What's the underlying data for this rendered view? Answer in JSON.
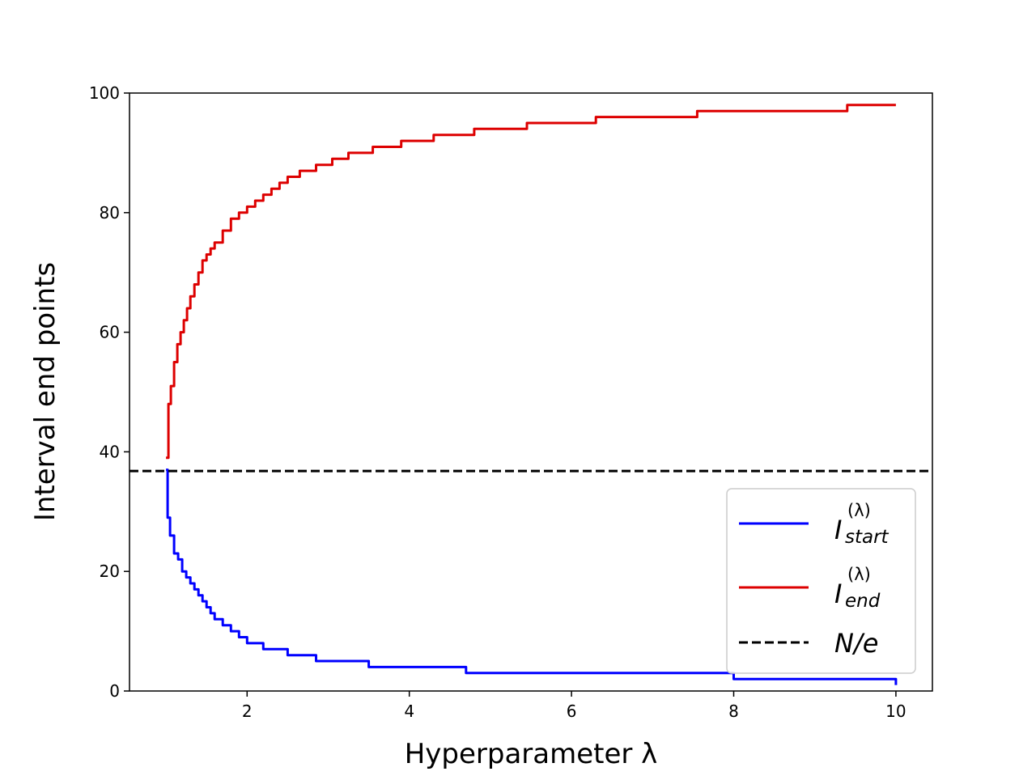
{
  "chart_data": {
    "type": "line",
    "title": "",
    "xlabel": "Hyperparameter λ",
    "ylabel": "Interval end points",
    "xlim": [
      0.55,
      10.45
    ],
    "ylim": [
      0,
      100
    ],
    "xticks": [
      2,
      4,
      6,
      8,
      10
    ],
    "yticks": [
      0,
      20,
      40,
      60,
      80,
      100
    ],
    "grid": false,
    "legend_position": "lower-right",
    "series": [
      {
        "name": "I_start^(λ)",
        "legend_symbol": "I",
        "legend_subscript": "start",
        "legend_superscript": "(λ)",
        "color": "#0000ff",
        "line_style": "solid",
        "x": [
          1.0,
          1.02,
          1.05,
          1.1,
          1.15,
          1.2,
          1.25,
          1.3,
          1.35,
          1.4,
          1.45,
          1.5,
          1.55,
          1.6,
          1.7,
          1.8,
          1.9,
          2.0,
          2.2,
          2.5,
          2.85,
          3.5,
          4.7,
          8.0,
          10.0
        ],
        "y": [
          37,
          29,
          26,
          23,
          22,
          20,
          19,
          18,
          17,
          16,
          15,
          14,
          13,
          12,
          11,
          10,
          9,
          8,
          7,
          6,
          5,
          4,
          3,
          2,
          1
        ]
      },
      {
        "name": "I_end^(λ)",
        "legend_symbol": "I",
        "legend_subscript": "end",
        "legend_superscript": "(λ)",
        "color": "#dd0000",
        "line_style": "solid",
        "x": [
          1.0,
          1.03,
          1.06,
          1.1,
          1.14,
          1.18,
          1.22,
          1.26,
          1.3,
          1.35,
          1.4,
          1.45,
          1.5,
          1.55,
          1.6,
          1.7,
          1.8,
          1.9,
          2.0,
          2.1,
          2.2,
          2.3,
          2.4,
          2.5,
          2.65,
          2.85,
          3.05,
          3.25,
          3.55,
          3.9,
          4.3,
          4.8,
          5.45,
          6.3,
          7.55,
          9.4,
          10.0
        ],
        "y": [
          39,
          48,
          51,
          55,
          58,
          60,
          62,
          64,
          66,
          68,
          70,
          72,
          73,
          74,
          75,
          77,
          79,
          80,
          81,
          82,
          83,
          84,
          85,
          86,
          87,
          88,
          89,
          90,
          91,
          92,
          93,
          94,
          95,
          96,
          97,
          98,
          98
        ]
      },
      {
        "name": "N/e",
        "legend_symbol": "N/e",
        "color": "#000000",
        "line_style": "dashed",
        "x": [
          0.55,
          10.45
        ],
        "y": [
          36.79,
          36.79
        ]
      }
    ]
  }
}
